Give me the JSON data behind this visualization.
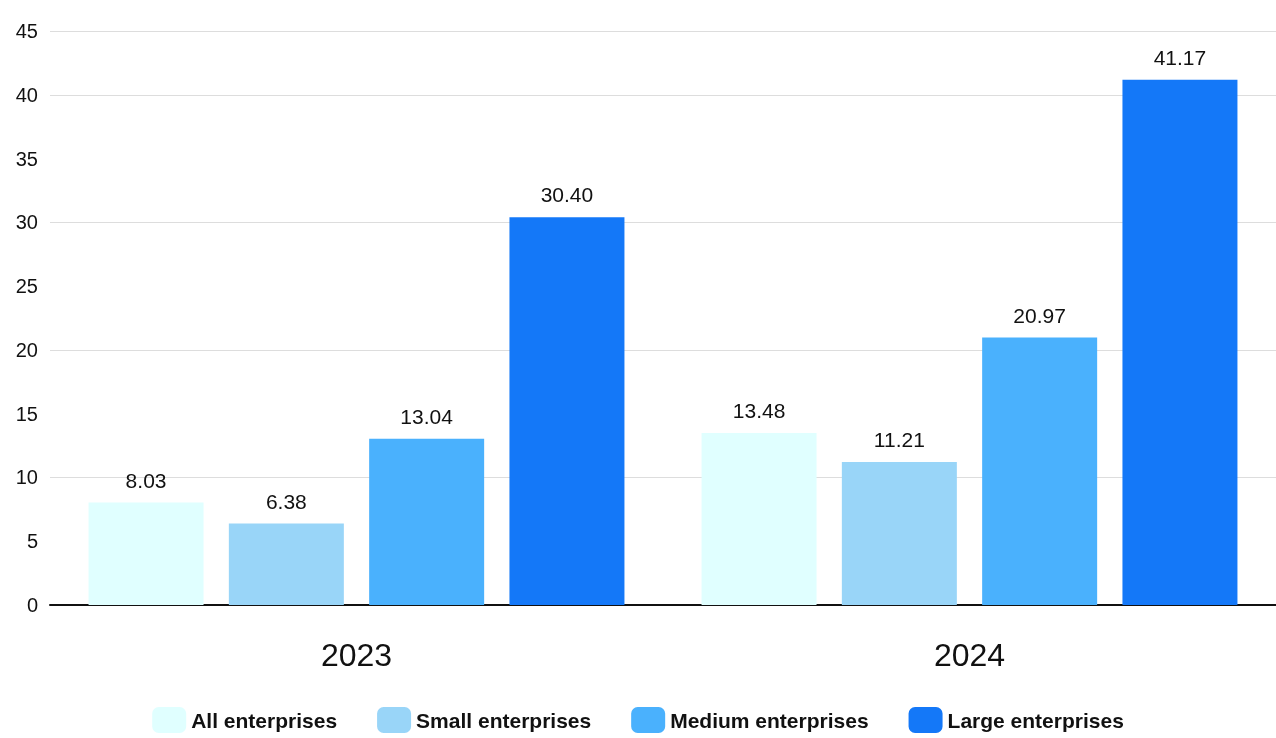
{
  "chart_data": {
    "type": "bar",
    "categories": [
      "2023",
      "2024"
    ],
    "series": [
      {
        "name": "All enterprises",
        "color": "#e0ffff",
        "values": [
          8.03,
          13.48
        ],
        "value_labels": [
          "8.03",
          "13.48"
        ]
      },
      {
        "name": "Small enterprises",
        "color": "#99d5f8",
        "values": [
          6.38,
          11.21
        ],
        "value_labels": [
          "6.38",
          "11.21"
        ]
      },
      {
        "name": "Medium enterprises",
        "color": "#4ab1fd",
        "values": [
          13.04,
          20.97
        ],
        "value_labels": [
          "13.04",
          "20.97"
        ]
      },
      {
        "name": "Large enterprises",
        "color": "#1478f8",
        "values": [
          30.4,
          41.17
        ],
        "value_labels": [
          "30.40",
          "41.17"
        ]
      }
    ],
    "ylim": [
      0,
      45
    ],
    "yticks": [
      0,
      5,
      10,
      15,
      20,
      25,
      30,
      35,
      40,
      45
    ],
    "grid": "y",
    "legend": "bottom"
  }
}
